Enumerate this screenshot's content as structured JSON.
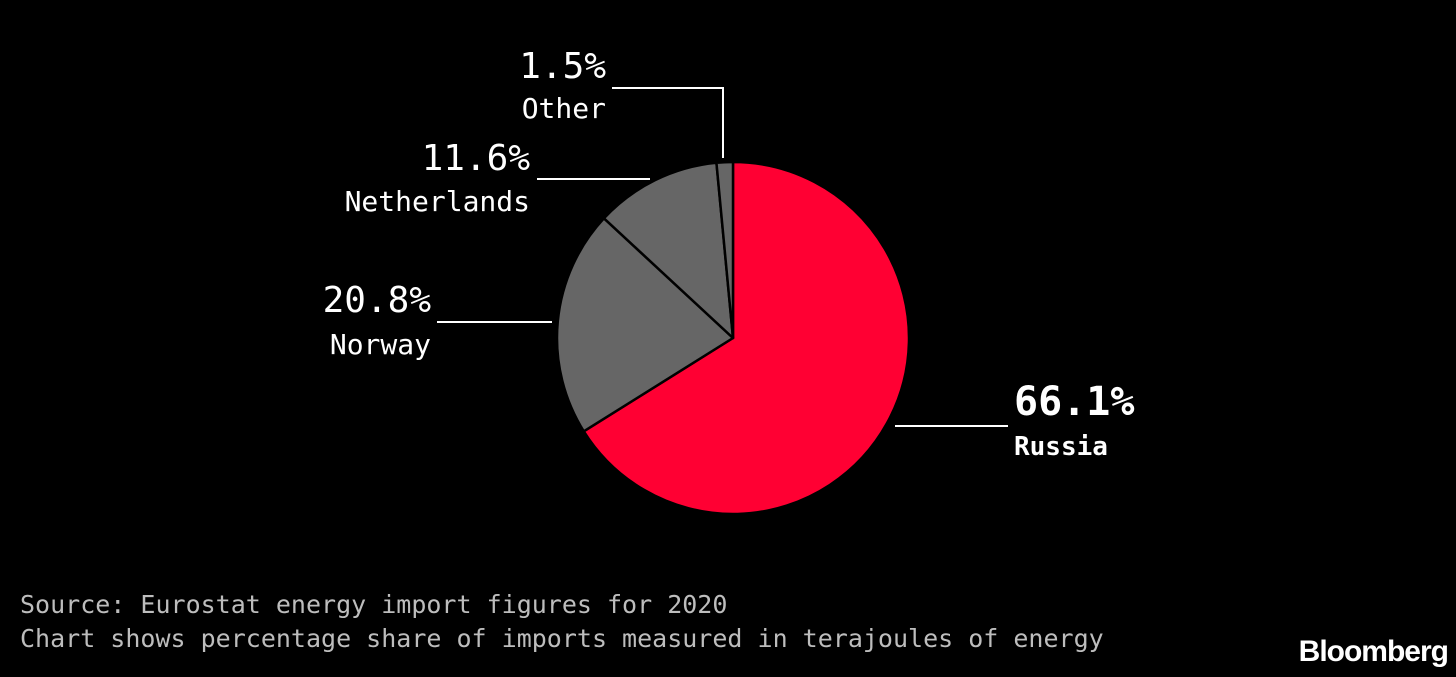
{
  "chart_data": {
    "type": "pie",
    "slices": [
      {
        "label": "Russia",
        "value": 66.1,
        "value_label": "66.1%",
        "color": "#ff0033",
        "emphasis": true
      },
      {
        "label": "Norway",
        "value": 20.8,
        "value_label": "20.8%",
        "color": "#666666",
        "emphasis": false
      },
      {
        "label": "Netherlands",
        "value": 11.6,
        "value_label": "11.6%",
        "color": "#666666",
        "emphasis": false
      },
      {
        "label": "Other",
        "value": 1.5,
        "value_label": "1.5%",
        "color": "#666666",
        "emphasis": false
      }
    ],
    "start": "12 o'clock",
    "direction": "clockwise"
  },
  "footer": {
    "source": "Source: Eurostat energy import figures for 2020",
    "note": "Chart shows percentage share of imports measured in terajoules of energy"
  },
  "brand": "Bloomberg"
}
